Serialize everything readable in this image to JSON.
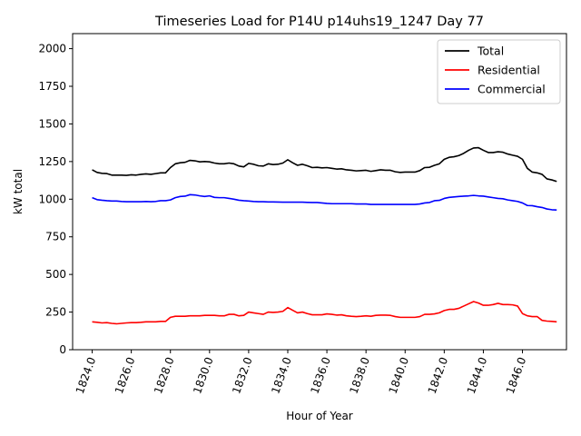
{
  "chart_data": {
    "type": "line",
    "title": "Timeseries Load for P14U p14uhs19_1247  Day 77",
    "xlabel": "Hour of Year",
    "ylabel": "kW total",
    "xlim": [
      1823.0,
      1848.25
    ],
    "ylim": [
      0,
      2100
    ],
    "xticks": [
      1824,
      1826,
      1828,
      1830,
      1832,
      1834,
      1836,
      1838,
      1840,
      1842,
      1844,
      1846
    ],
    "xtick_labels": [
      "1824.0",
      "1826.0",
      "1828.0",
      "1830.0",
      "1832.0",
      "1834.0",
      "1836.0",
      "1838.0",
      "1840.0",
      "1842.0",
      "1844.0",
      "1846.0"
    ],
    "yticks": [
      0,
      250,
      500,
      750,
      1000,
      1250,
      1500,
      1750,
      2000
    ],
    "ytick_labels": [
      "0",
      "250",
      "500",
      "750",
      "1000",
      "1250",
      "1500",
      "1750",
      "2000"
    ],
    "legend_position": "top-right",
    "x": [
      1824.0,
      1824.25,
      1824.5,
      1824.75,
      1825.0,
      1825.25,
      1825.5,
      1825.75,
      1826.0,
      1826.25,
      1826.5,
      1826.75,
      1827.0,
      1827.25,
      1827.5,
      1827.75,
      1828.0,
      1828.25,
      1828.5,
      1828.75,
      1829.0,
      1829.25,
      1829.5,
      1829.75,
      1830.0,
      1830.25,
      1830.5,
      1830.75,
      1831.0,
      1831.25,
      1831.5,
      1831.75,
      1832.0,
      1832.25,
      1832.5,
      1832.75,
      1833.0,
      1833.25,
      1833.5,
      1833.75,
      1834.0,
      1834.25,
      1834.5,
      1834.75,
      1835.0,
      1835.25,
      1835.5,
      1835.75,
      1836.0,
      1836.25,
      1836.5,
      1836.75,
      1837.0,
      1837.25,
      1837.5,
      1837.75,
      1838.0,
      1838.25,
      1838.5,
      1838.75,
      1839.0,
      1839.25,
      1839.5,
      1839.75,
      1840.0,
      1840.25,
      1840.5,
      1840.75,
      1841.0,
      1841.25,
      1841.5,
      1841.75,
      1842.0,
      1842.25,
      1842.5,
      1842.75,
      1843.0,
      1843.25,
      1843.5,
      1843.75,
      1844.0,
      1844.25,
      1844.5,
      1844.75,
      1845.0,
      1845.25,
      1845.5,
      1845.75,
      1846.0,
      1846.25,
      1846.5,
      1846.75,
      1847.0,
      1847.25,
      1847.5,
      1847.75
    ],
    "series": [
      {
        "name": "Total",
        "color": "#000000",
        "values": [
          1195,
          1178,
          1172,
          1170,
          1160,
          1160,
          1160,
          1158,
          1162,
          1160,
          1165,
          1168,
          1165,
          1170,
          1175,
          1175,
          1210,
          1235,
          1242,
          1245,
          1258,
          1255,
          1248,
          1250,
          1248,
          1240,
          1235,
          1235,
          1240,
          1235,
          1220,
          1215,
          1238,
          1232,
          1222,
          1220,
          1235,
          1230,
          1232,
          1240,
          1262,
          1242,
          1225,
          1232,
          1222,
          1210,
          1212,
          1208,
          1210,
          1205,
          1200,
          1202,
          1195,
          1192,
          1188,
          1190,
          1192,
          1185,
          1190,
          1195,
          1192,
          1192,
          1182,
          1178,
          1180,
          1180,
          1180,
          1190,
          1210,
          1212,
          1225,
          1235,
          1265,
          1278,
          1282,
          1290,
          1305,
          1325,
          1340,
          1342,
          1325,
          1310,
          1310,
          1315,
          1312,
          1300,
          1292,
          1285,
          1265,
          1205,
          1180,
          1175,
          1165,
          1135,
          1128,
          1118
        ]
      },
      {
        "name": "Residential",
        "color": "#ff0000",
        "values": [
          185,
          182,
          178,
          180,
          175,
          172,
          175,
          178,
          180,
          180,
          182,
          185,
          185,
          185,
          188,
          188,
          215,
          222,
          222,
          222,
          225,
          225,
          225,
          228,
          228,
          228,
          225,
          225,
          235,
          235,
          225,
          228,
          250,
          245,
          240,
          235,
          250,
          248,
          250,
          255,
          280,
          262,
          245,
          250,
          240,
          232,
          232,
          232,
          238,
          235,
          230,
          232,
          225,
          222,
          220,
          222,
          225,
          222,
          228,
          230,
          230,
          228,
          220,
          215,
          215,
          215,
          215,
          220,
          235,
          235,
          238,
          245,
          260,
          268,
          268,
          275,
          290,
          305,
          320,
          310,
          295,
          295,
          300,
          308,
          300,
          300,
          298,
          290,
          240,
          225,
          220,
          220,
          195,
          190,
          188,
          185
        ]
      },
      {
        "name": "Commercial",
        "color": "#0000ff",
        "values": [
          1010,
          997,
          993,
          990,
          988,
          988,
          985,
          983,
          983,
          983,
          983,
          985,
          983,
          985,
          990,
          990,
          995,
          1010,
          1018,
          1020,
          1030,
          1028,
          1022,
          1018,
          1022,
          1012,
          1010,
          1010,
          1005,
          1000,
          993,
          990,
          988,
          985,
          983,
          983,
          982,
          982,
          981,
          980,
          980,
          980,
          980,
          980,
          979,
          978,
          978,
          975,
          972,
          970,
          970,
          970,
          970,
          970,
          968,
          968,
          968,
          965,
          965,
          965,
          965,
          965,
          965,
          965,
          965,
          965,
          965,
          968,
          975,
          978,
          990,
          992,
          1005,
          1012,
          1015,
          1018,
          1020,
          1022,
          1025,
          1022,
          1020,
          1015,
          1010,
          1005,
          1003,
          995,
          990,
          985,
          975,
          958,
          957,
          950,
          945,
          935,
          930,
          928
        ]
      }
    ]
  }
}
